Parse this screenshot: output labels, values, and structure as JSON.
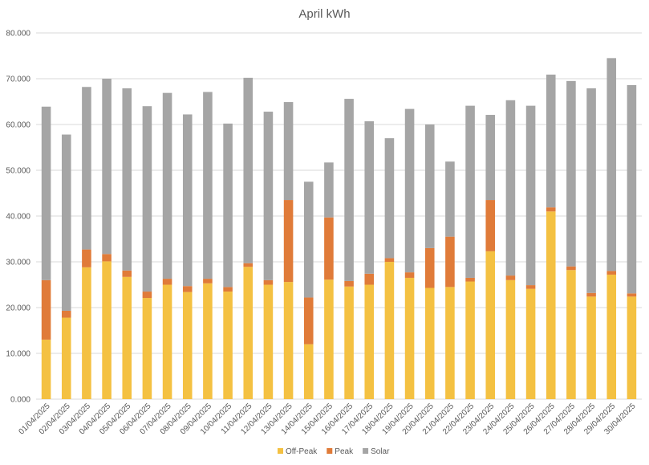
{
  "chart_data": {
    "type": "bar",
    "stacked": true,
    "title": "April kWh",
    "xlabel": "",
    "ylabel": "",
    "ylim": [
      0,
      80
    ],
    "yticks": [
      "0.000",
      "10.000",
      "20.000",
      "30.000",
      "40.000",
      "50.000",
      "60.000",
      "70.000",
      "80.000"
    ],
    "grid": true,
    "legend_position": "bottom",
    "categories": [
      "01/04/2025",
      "02/04/2025",
      "03/04/2025",
      "04/04/2025",
      "05/04/2025",
      "06/04/2025",
      "07/04/2025",
      "08/04/2025",
      "09/04/2025",
      "10/04/2025",
      "11/04/2025",
      "12/04/2025",
      "13/04/2025",
      "14/04/2025",
      "15/04/2025",
      "16/04/2025",
      "17/04/2025",
      "18/04/2025",
      "19/04/2025",
      "20/04/2025",
      "21/04/2025",
      "22/04/2025",
      "23/04/2025",
      "24/04/2025",
      "25/04/2025",
      "26/04/2025",
      "27/04/2025",
      "28/04/2025",
      "29/04/2025",
      "30/04/2025"
    ],
    "series": [
      {
        "name": "Off-Peak",
        "color": "#f4c142",
        "values": [
          13.0,
          17.8,
          28.8,
          30.1,
          26.7,
          22.1,
          25.0,
          23.4,
          25.3,
          23.5,
          28.9,
          25.0,
          25.6,
          12.0,
          26.1,
          24.6,
          25.0,
          30.0,
          26.5,
          24.3,
          24.5,
          25.7,
          32.3,
          26.0,
          24.1,
          41.0,
          28.2,
          22.4,
          27.2,
          22.4
        ]
      },
      {
        "name": "Peak",
        "color": "#e07b39",
        "values": [
          13.0,
          1.5,
          3.9,
          1.6,
          1.4,
          1.4,
          1.3,
          1.3,
          1.0,
          1.0,
          0.8,
          1.0,
          17.9,
          10.2,
          13.6,
          1.2,
          2.4,
          0.8,
          1.2,
          8.7,
          11.0,
          0.8,
          11.2,
          1.0,
          0.8,
          0.9,
          0.8,
          0.8,
          0.8,
          0.7
        ]
      },
      {
        "name": "Solar",
        "color": "#a5a5a5",
        "values": [
          37.9,
          38.5,
          35.5,
          38.3,
          39.8,
          40.5,
          40.6,
          37.5,
          40.8,
          35.7,
          40.5,
          36.8,
          21.4,
          25.3,
          12.0,
          39.8,
          33.3,
          26.2,
          35.7,
          27.0,
          16.4,
          37.6,
          18.6,
          38.3,
          39.2,
          29.0,
          40.5,
          44.7,
          46.5,
          45.5
        ]
      }
    ]
  }
}
